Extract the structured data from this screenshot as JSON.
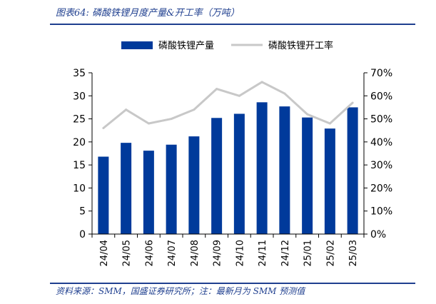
{
  "header": {
    "title": "图表64:  磷酸铁锂月度产量&开工率（万吨）"
  },
  "footer": {
    "source": "资料来源：SMM，国盛证券研究所；注：最新月为 SMM 预测值"
  },
  "colors": {
    "bar": "#003a9b",
    "line": "#c8c8c8",
    "accent": "#1f3f8f"
  },
  "chart_data": {
    "type": "bar",
    "categories": [
      "24/04",
      "24/05",
      "24/06",
      "24/07",
      "24/08",
      "24/09",
      "24/10",
      "24/11",
      "24/12",
      "25/01",
      "25/02",
      "25/03"
    ],
    "series": [
      {
        "name": "磷酸铁锂产量",
        "type": "bar",
        "axis": "left",
        "values": [
          16.8,
          19.8,
          18.1,
          19.4,
          21.2,
          25.2,
          26.1,
          28.6,
          27.7,
          25.3,
          22.9,
          27.5
        ]
      },
      {
        "name": "磷酸铁锂开工率",
        "type": "line",
        "axis": "right",
        "values": [
          46,
          54,
          48,
          50,
          54,
          63,
          60,
          66,
          61,
          52,
          48,
          57
        ]
      }
    ],
    "ylim_left": [
      0,
      35
    ],
    "yticks_left": [
      "0",
      "5",
      "10",
      "15",
      "20",
      "25",
      "30",
      "35"
    ],
    "ylim_right": [
      0,
      70
    ],
    "yticks_right": [
      "0%",
      "10%",
      "20%",
      "30%",
      "40%",
      "50%",
      "60%",
      "70%"
    ],
    "legend": "top",
    "grid": false
  }
}
